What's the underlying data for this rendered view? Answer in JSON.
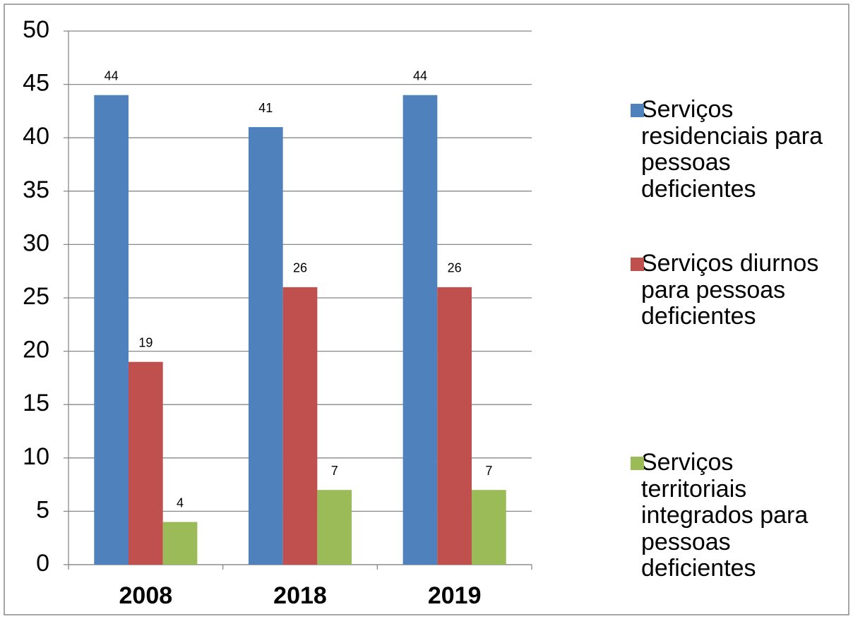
{
  "chart_data": {
    "type": "bar",
    "categories": [
      "2008",
      "2018",
      "2019"
    ],
    "series": [
      {
        "name": "Serviços residenciais para pessoas deficientes",
        "color": "#4f81bd",
        "values": [
          44,
          41,
          44
        ]
      },
      {
        "name": "Serviços diurnos para pessoas deficientes",
        "color": "#c0504d",
        "values": [
          19,
          26,
          26
        ]
      },
      {
        "name": "Serviços territoriais integrados para pessoas deficientes",
        "color": "#9bbb59",
        "values": [
          4,
          7,
          7
        ]
      }
    ],
    "ylim": [
      0,
      50
    ],
    "yticks": [
      0,
      5,
      10,
      15,
      20,
      25,
      30,
      35,
      40,
      45,
      50
    ],
    "grid": true,
    "legend": "right"
  }
}
